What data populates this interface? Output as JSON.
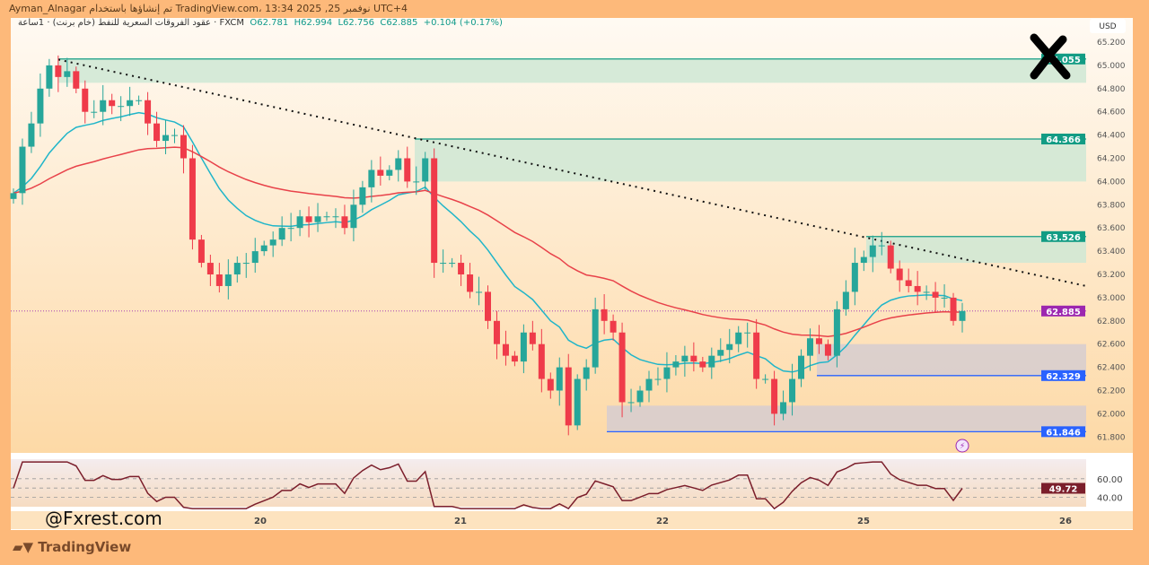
{
  "header": {
    "publisher_line": "Ayman_Alnagar تم إنشاؤها باستخدام TradingView.com، 13:34 2025 ,25 نوفمبر UTC+4",
    "symbol": "عقود الفروقات السعرية للنفط (خام برنت) · 1ساعة · FXCM",
    "open": "O62.781",
    "high": "H62.994",
    "low": "L62.756",
    "close": "C62.885",
    "change": "+0.104 (+0.17%)"
  },
  "watermark": "@Fxrest.com",
  "brand": "TradingView",
  "colors": {
    "up": "#26a69a",
    "down": "#ef3b4a",
    "ema_fast": "#1fb5c9",
    "ema_slow": "#e8424a",
    "rsi": "#7b1e2b",
    "zone_green": "#cfe8d5",
    "zone_gray": "#d6cdd0",
    "accent_green": "#129c84",
    "accent_blue": "#2962ff",
    "last_price": "#9c27b0"
  },
  "chart_data": {
    "type": "candlestick",
    "currency": "USD",
    "ylim": [
      61.8,
      65.25
    ],
    "y_ticks": [
      "65.200",
      "65.000",
      "64.800",
      "64.600",
      "64.400",
      "64.200",
      "64.000",
      "63.800",
      "63.600",
      "63.400",
      "63.200",
      "63.000",
      "62.800",
      "62.600",
      "62.400",
      "62.200",
      "62.000",
      "61.800"
    ],
    "x_ticks": [
      "20",
      "21",
      "22",
      "25",
      "26"
    ],
    "closes": [
      63.9,
      64.3,
      64.5,
      64.8,
      65.0,
      64.9,
      64.95,
      64.8,
      64.6,
      64.6,
      64.7,
      64.65,
      64.65,
      64.7,
      64.7,
      64.5,
      64.35,
      64.4,
      64.4,
      64.2,
      63.5,
      63.3,
      63.2,
      63.1,
      63.2,
      63.3,
      63.3,
      63.4,
      63.45,
      63.5,
      63.6,
      63.6,
      63.7,
      63.65,
      63.7,
      63.7,
      63.7,
      63.6,
      63.8,
      63.95,
      64.1,
      64.05,
      64.1,
      64.2,
      64.0,
      64.0,
      64.2,
      63.3,
      63.3,
      63.3,
      63.2,
      63.05,
      63.05,
      62.8,
      62.6,
      62.5,
      62.45,
      62.7,
      62.6,
      62.3,
      62.2,
      62.4,
      61.9,
      62.3,
      62.4,
      62.9,
      62.8,
      62.7,
      62.1,
      62.1,
      62.2,
      62.3,
      62.3,
      62.4,
      62.45,
      62.5,
      62.45,
      62.4,
      62.5,
      62.55,
      62.6,
      62.7,
      62.7,
      62.3,
      62.3,
      62.0,
      62.1,
      62.3,
      62.5,
      62.65,
      62.6,
      62.5,
      62.9,
      63.05,
      63.3,
      63.35,
      63.45,
      63.45,
      63.25,
      63.15,
      63.1,
      63.05,
      63.05,
      63.0,
      63.0,
      62.8,
      62.885
    ],
    "price_labels": [
      {
        "value": "65.055",
        "color": "#129c84"
      },
      {
        "value": "64.366",
        "color": "#129c84"
      },
      {
        "value": "63.526",
        "color": "#129c84"
      },
      {
        "value": "62.885",
        "color": "#9c27b0"
      },
      {
        "value": "62.329",
        "color": "#2962ff"
      },
      {
        "value": "61.846",
        "color": "#2962ff"
      }
    ],
    "zones": [
      {
        "top": 65.055,
        "bottom": 64.85,
        "type": "green"
      },
      {
        "top": 64.366,
        "bottom": 64.0,
        "type": "green"
      },
      {
        "top": 63.526,
        "bottom": 63.3,
        "type": "green"
      },
      {
        "top": 62.6,
        "bottom": 62.329,
        "type": "gray"
      },
      {
        "top": 62.07,
        "bottom": 61.846,
        "type": "gray"
      }
    ],
    "trendline": {
      "from": 65.05,
      "to": 63.1
    },
    "rsi": {
      "value": "49.72",
      "levels": [
        "60.00",
        "40.00"
      ]
    }
  }
}
